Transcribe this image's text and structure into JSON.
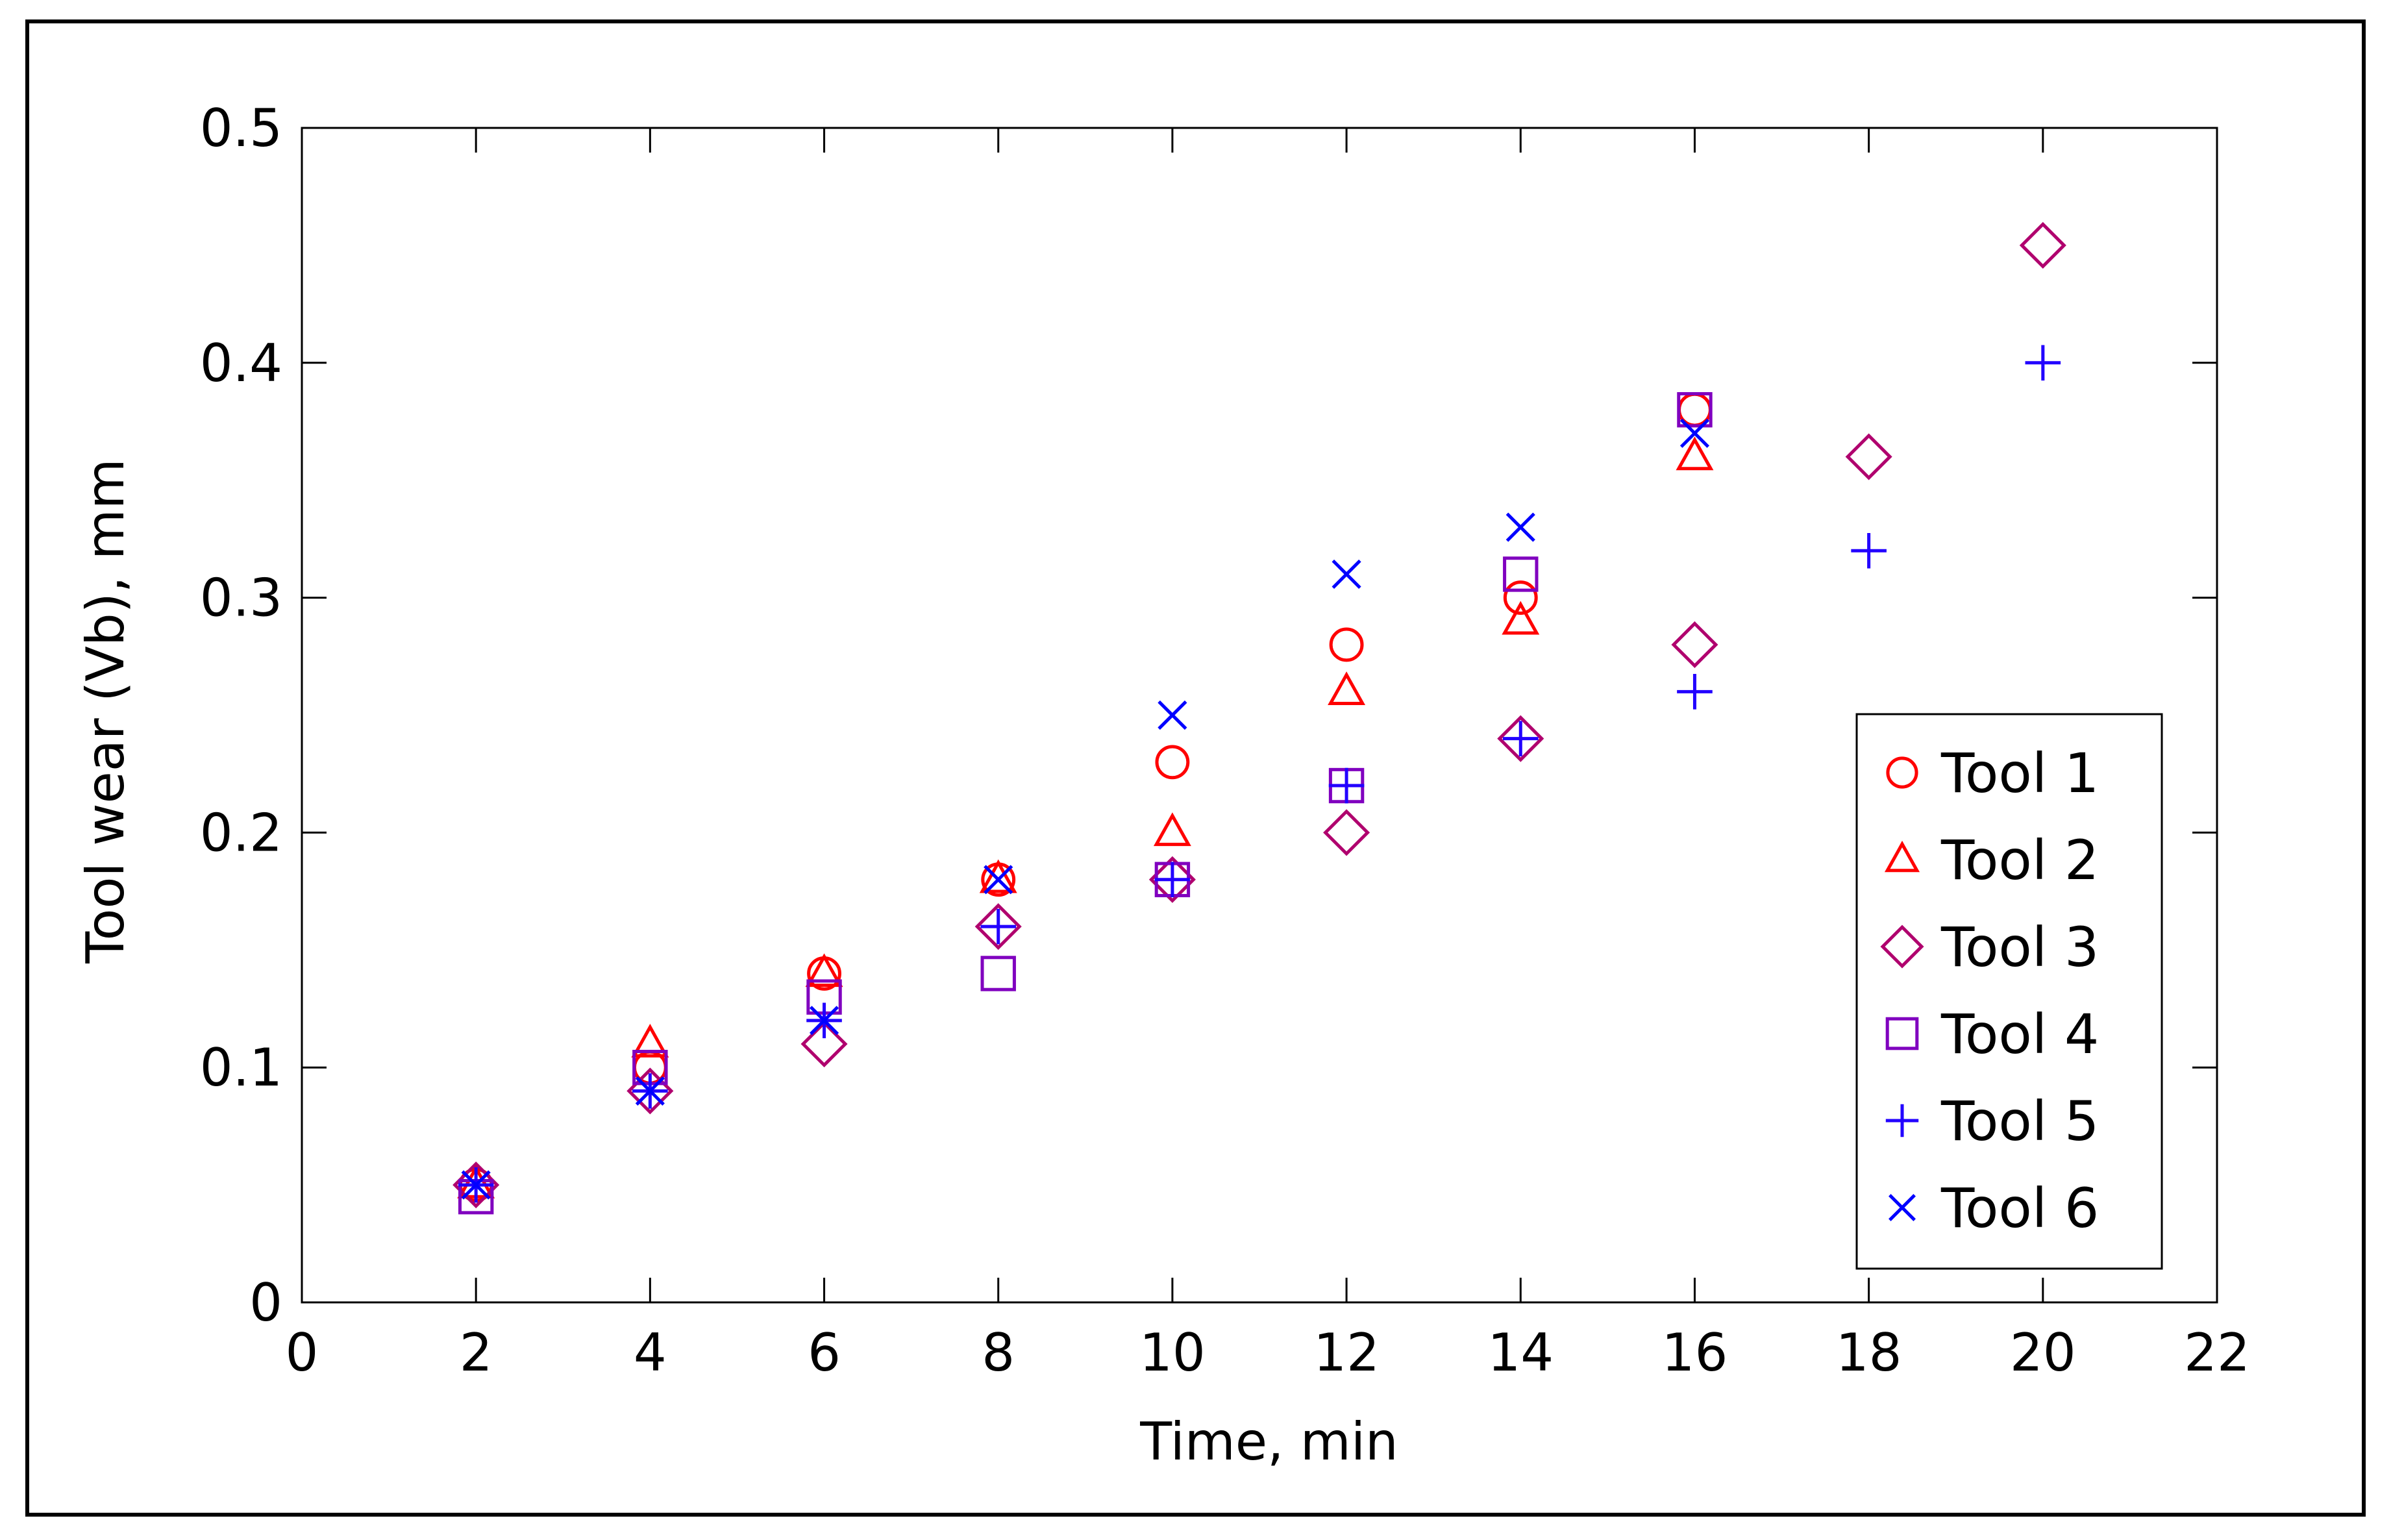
{
  "chart_data": {
    "type": "scatter",
    "title": "",
    "xlabel": "Time, min",
    "ylabel": "Tool wear (Vb), mm",
    "xlim": [
      0,
      22
    ],
    "ylim": [
      0,
      0.5
    ],
    "xticks": [
      0,
      2,
      4,
      6,
      8,
      10,
      12,
      14,
      16,
      18,
      20,
      22
    ],
    "yticks": [
      0,
      0.1,
      0.2,
      0.3,
      0.4,
      0.5
    ],
    "xtick_labels": [
      "0",
      "2",
      "4",
      "6",
      "8",
      "10",
      "12",
      "14",
      "16",
      "18",
      "20",
      "22"
    ],
    "ytick_labels": [
      "0",
      "0.1",
      "0.2",
      "0.3",
      "0.4",
      "0.5"
    ],
    "grid": false,
    "legend_position": "bottom-right",
    "series": [
      {
        "name": "Tool 1",
        "marker": "circle",
        "color": "#ff0000",
        "x": [
          2,
          4,
          6,
          8,
          10,
          12,
          14,
          16
        ],
        "y": [
          0.05,
          0.1,
          0.14,
          0.18,
          0.23,
          0.28,
          0.3,
          0.38
        ]
      },
      {
        "name": "Tool 2",
        "marker": "triangle",
        "color": "#ff0000",
        "x": [
          2,
          4,
          6,
          8,
          10,
          12,
          14,
          16
        ],
        "y": [
          0.05,
          0.11,
          0.14,
          0.18,
          0.2,
          0.26,
          0.29,
          0.36
        ]
      },
      {
        "name": "Tool 3",
        "marker": "diamond",
        "color": "#b0006e",
        "x": [
          2,
          4,
          6,
          8,
          10,
          12,
          14,
          16,
          18,
          20
        ],
        "y": [
          0.05,
          0.09,
          0.11,
          0.16,
          0.18,
          0.2,
          0.24,
          0.28,
          0.36,
          0.45
        ]
      },
      {
        "name": "Tool 4",
        "marker": "square",
        "color": "#8000bf",
        "x": [
          2,
          4,
          6,
          8,
          10,
          12,
          14,
          16
        ],
        "y": [
          0.045,
          0.1,
          0.13,
          0.14,
          0.18,
          0.22,
          0.31,
          0.38
        ]
      },
      {
        "name": "Tool 5",
        "marker": "plus",
        "color": "#2200ff",
        "x": [
          2,
          4,
          6,
          8,
          10,
          12,
          14,
          16,
          18,
          20
        ],
        "y": [
          0.05,
          0.09,
          0.12,
          0.16,
          0.18,
          0.22,
          0.24,
          0.26,
          0.32,
          0.4
        ]
      },
      {
        "name": "Tool 6",
        "marker": "x",
        "color": "#0000ff",
        "x": [
          2,
          4,
          6,
          8,
          10,
          12,
          14,
          16
        ],
        "y": [
          0.05,
          0.09,
          0.12,
          0.18,
          0.25,
          0.31,
          0.33,
          0.37
        ]
      }
    ]
  }
}
